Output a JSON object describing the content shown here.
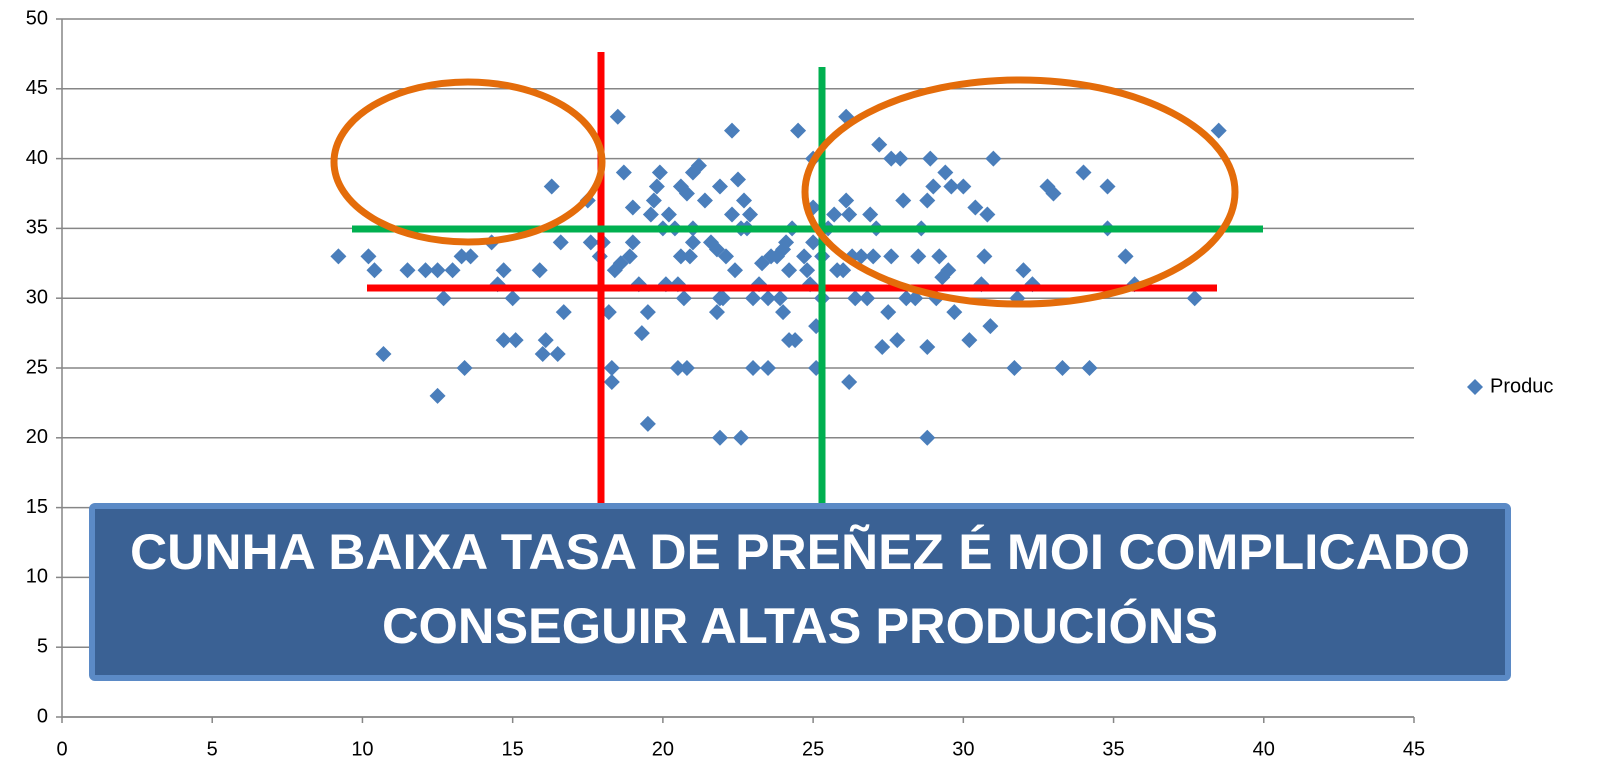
{
  "chart_data": {
    "type": "scatter",
    "annotation": [
      "CUNHA BAIXA TASA DE PREÑEZ É MOI COMPLICADO",
      "CONSEGUIR ALTAS PRODUCIÓNS"
    ],
    "x": [
      9.2,
      10.2,
      10.4,
      10.7,
      11.5,
      12.1,
      12.5,
      12.5,
      12.7,
      13,
      13.3,
      13.4,
      13.6,
      14.3,
      14.5,
      14.7,
      14.7,
      15,
      15.1,
      15.9,
      16,
      16.1,
      16.3,
      16.5,
      16.6,
      16.7,
      17.5,
      17.6,
      17.9,
      18,
      18.2,
      18.3,
      18.3,
      18.4,
      18.5,
      18.6,
      18.7,
      18.9,
      19,
      19,
      19.2,
      19.3,
      19.5,
      19.5,
      19.6,
      19.7,
      19.8,
      19.9,
      20,
      20.1,
      20.2,
      20.4,
      20.5,
      20.5,
      20.6,
      20.6,
      20.7,
      20.8,
      20.8,
      20.9,
      21,
      21,
      21,
      21.2,
      21.4,
      21.6,
      21.8,
      21.8,
      21.9,
      21.9,
      21.9,
      22,
      22.1,
      22.3,
      22.3,
      22.4,
      22.5,
      22.6,
      22.6,
      22.7,
      22.8,
      22.9,
      23,
      23,
      23.2,
      23.3,
      23.5,
      23.5,
      23.6,
      23.8,
      23.9,
      24,
      24,
      24.1,
      24.2,
      24.2,
      24.3,
      24.4,
      24.5,
      24.7,
      24.8,
      24.9,
      25,
      25,
      25,
      25.1,
      25.1,
      25.3,
      25.3,
      25.5,
      25.7,
      25.8,
      26,
      26.1,
      26.1,
      26.2,
      26.2,
      26.3,
      26.4,
      26.6,
      26.8,
      26.9,
      27,
      27.1,
      27.2,
      27.3,
      27.5,
      27.6,
      27.6,
      27.8,
      27.9,
      28,
      28.1,
      28.4,
      28.5,
      28.6,
      28.8,
      28.8,
      28.8,
      28.9,
      29,
      29.1,
      29.2,
      29.3,
      29.4,
      29.5,
      29.6,
      29.7,
      30,
      30.2,
      30.4,
      30.6,
      30.7,
      30.8,
      30.9,
      31,
      31.7,
      31.8,
      32,
      32.3,
      32.8,
      33,
      33.3,
      34,
      34.2,
      34.8,
      34.8,
      35.4,
      35.7,
      37.7,
      38.5
    ],
    "series": [
      {
        "name": "Produc",
        "color": "#4a7ebb",
        "values": [
          33,
          33,
          32,
          26,
          32,
          32,
          32,
          23,
          30,
          32,
          33,
          25,
          33,
          34,
          31,
          32,
          27,
          30,
          27,
          32,
          26,
          27,
          38,
          26,
          34,
          29,
          37,
          34,
          33,
          34,
          29,
          25,
          24,
          32,
          43,
          32.5,
          39,
          33,
          36.5,
          34,
          31,
          27.5,
          29,
          21,
          36,
          37,
          38,
          39,
          35,
          31,
          36,
          35,
          31,
          25,
          38,
          33,
          30,
          25,
          37.5,
          33,
          35,
          39,
          34,
          39.5,
          37,
          34,
          33.5,
          29,
          30,
          38,
          20,
          30,
          33,
          36,
          42,
          32,
          38.5,
          35,
          20,
          37,
          35,
          36,
          30,
          25,
          31,
          32.5,
          25,
          30,
          33,
          33,
          30,
          29,
          33.5,
          34,
          27,
          32,
          35,
          27,
          42,
          33,
          32,
          31,
          34,
          36.5,
          40,
          28,
          25,
          30,
          33,
          35,
          36,
          32,
          32,
          43,
          37,
          36,
          24,
          33,
          30,
          33,
          30,
          36,
          33,
          35,
          41,
          26.5,
          29,
          40,
          33,
          27,
          40,
          37,
          30,
          30,
          33,
          35,
          26.5,
          20,
          37,
          40,
          38,
          30,
          33,
          31.5,
          39,
          32,
          38,
          29,
          38,
          27,
          36.5,
          31,
          33,
          36,
          28,
          40,
          25,
          30,
          32,
          31,
          38,
          37.5,
          25,
          39,
          25,
          35,
          38,
          33,
          31,
          30,
          42
        ]
      }
    ],
    "xlim": [
      0,
      45
    ],
    "xticks": [
      0,
      5,
      10,
      15,
      20,
      25,
      30,
      35,
      40,
      45
    ],
    "ylim": [
      0,
      50
    ],
    "yticks": [
      0,
      5,
      10,
      15,
      20,
      25,
      30,
      35,
      40,
      45,
      50
    ],
    "grid": true,
    "legend": "right"
  }
}
